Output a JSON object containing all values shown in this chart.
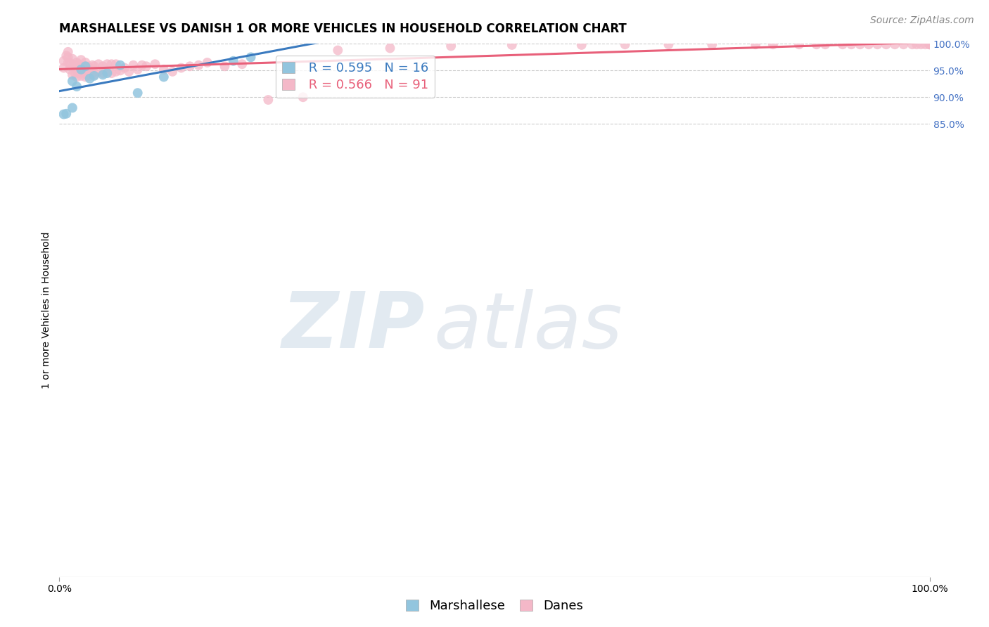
{
  "title": "MARSHALLESE VS DANISH 1 OR MORE VEHICLES IN HOUSEHOLD CORRELATION CHART",
  "source": "Source: ZipAtlas.com",
  "ylabel": "1 or more Vehicles in Household",
  "xlim": [
    0.0,
    1.0
  ],
  "ylim": [
    0.0,
    1.0
  ],
  "y_tick_positions": [
    0.85,
    0.9,
    0.95,
    1.0
  ],
  "y_tick_labels": [
    "85.0%",
    "90.0%",
    "95.0%",
    "100.0%"
  ],
  "watermark_zip": "ZIP",
  "watermark_atlas": "atlas",
  "legend_blue_label": "Marshallese",
  "legend_pink_label": "Danes",
  "blue_R": 0.595,
  "blue_N": 16,
  "pink_R": 0.566,
  "pink_N": 91,
  "blue_color": "#92c5de",
  "pink_color": "#f4b8c8",
  "blue_line_color": "#3a7abf",
  "pink_line_color": "#e8607a",
  "blue_scatter_x": [
    0.005,
    0.008,
    0.015,
    0.015,
    0.02,
    0.025,
    0.03,
    0.035,
    0.04,
    0.05,
    0.055,
    0.07,
    0.09,
    0.12,
    0.2,
    0.22
  ],
  "blue_scatter_y": [
    0.868,
    0.869,
    0.88,
    0.93,
    0.92,
    0.952,
    0.958,
    0.935,
    0.94,
    0.942,
    0.945,
    0.96,
    0.908,
    0.938,
    0.968,
    0.975
  ],
  "pink_scatter_x": [
    0.005,
    0.005,
    0.008,
    0.01,
    0.01,
    0.01,
    0.012,
    0.012,
    0.015,
    0.015,
    0.015,
    0.018,
    0.018,
    0.02,
    0.02,
    0.02,
    0.022,
    0.022,
    0.025,
    0.025,
    0.025,
    0.028,
    0.028,
    0.03,
    0.03,
    0.03,
    0.032,
    0.032,
    0.035,
    0.035,
    0.038,
    0.038,
    0.04,
    0.04,
    0.045,
    0.045,
    0.05,
    0.05,
    0.055,
    0.055,
    0.06,
    0.06,
    0.065,
    0.065,
    0.07,
    0.075,
    0.08,
    0.085,
    0.09,
    0.095,
    0.1,
    0.11,
    0.12,
    0.13,
    0.14,
    0.15,
    0.16,
    0.17,
    0.19,
    0.21,
    0.24,
    0.28,
    0.32,
    0.38,
    0.45,
    0.52,
    0.6,
    0.65,
    0.7,
    0.75,
    0.8,
    0.82,
    0.85,
    0.87,
    0.88,
    0.9,
    0.91,
    0.92,
    0.93,
    0.94,
    0.95,
    0.96,
    0.97,
    0.98,
    0.985,
    0.99,
    0.995,
    1.0,
    1.0,
    1.0,
    1.0
  ],
  "pink_scatter_y": [
    0.955,
    0.968,
    0.978,
    0.965,
    0.975,
    0.985,
    0.952,
    0.965,
    0.942,
    0.958,
    0.972,
    0.945,
    0.96,
    0.938,
    0.952,
    0.965,
    0.945,
    0.962,
    0.94,
    0.955,
    0.97,
    0.945,
    0.958,
    0.938,
    0.952,
    0.965,
    0.942,
    0.958,
    0.94,
    0.955,
    0.945,
    0.96,
    0.942,
    0.958,
    0.948,
    0.962,
    0.945,
    0.958,
    0.948,
    0.962,
    0.945,
    0.962,
    0.948,
    0.962,
    0.95,
    0.955,
    0.948,
    0.96,
    0.952,
    0.96,
    0.958,
    0.962,
    0.952,
    0.948,
    0.955,
    0.958,
    0.96,
    0.965,
    0.958,
    0.962,
    0.895,
    0.9,
    0.988,
    0.992,
    0.996,
    0.998,
    0.998,
    0.999,
    0.999,
    0.999,
    0.999,
    0.999,
    0.999,
    0.999,
    0.999,
    0.999,
    0.999,
    0.999,
    0.999,
    0.999,
    0.999,
    0.999,
    0.999,
    0.999,
    0.999,
    0.999,
    0.999,
    0.999,
    0.999,
    0.999,
    0.999
  ],
  "background_color": "#ffffff",
  "grid_color": "#cccccc",
  "title_fontsize": 12,
  "axis_label_fontsize": 10,
  "tick_fontsize": 10,
  "legend_fontsize": 13,
  "source_fontsize": 10,
  "marker_size": 100
}
